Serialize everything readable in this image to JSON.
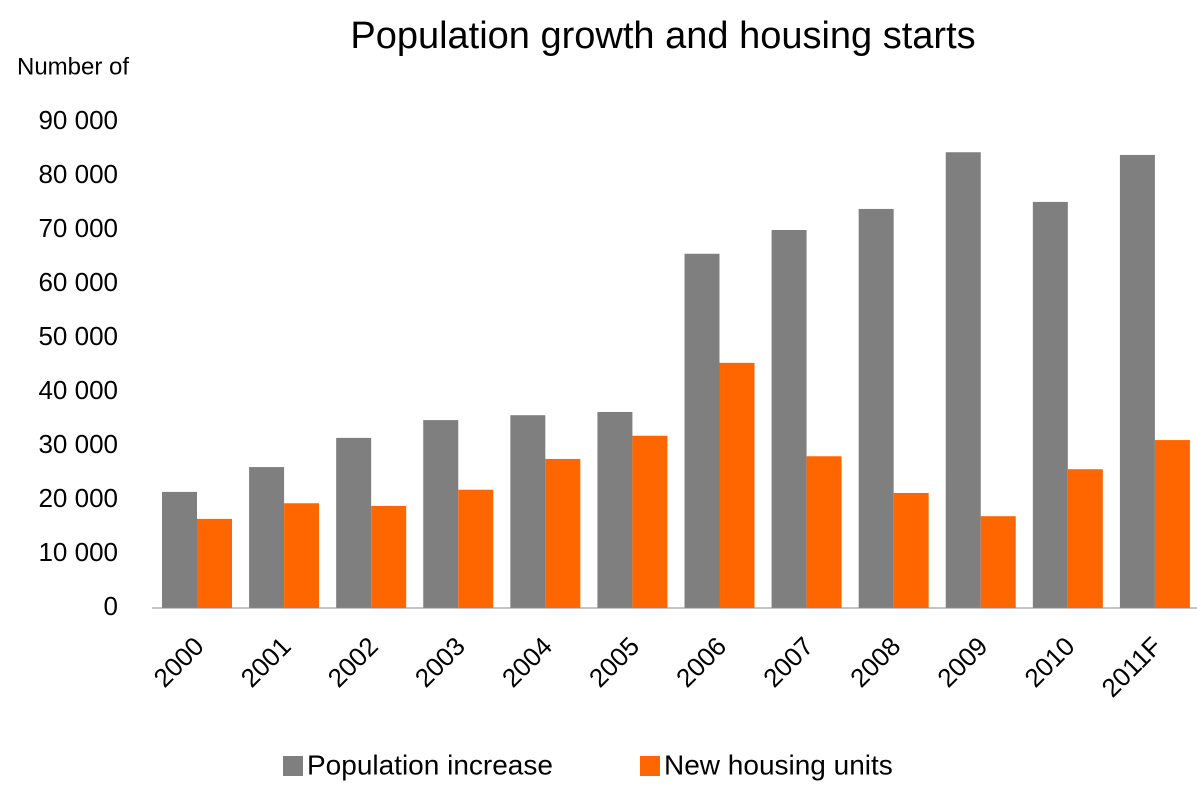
{
  "chart_data": {
    "type": "bar",
    "title": "Population growth and housing starts",
    "y_label": "Number of",
    "categories": [
      "2000",
      "2001",
      "2002",
      "2003",
      "2004",
      "2005",
      "2006",
      "2007",
      "2008",
      "2009",
      "2010",
      "2011F"
    ],
    "series": [
      {
        "name": "Population increase",
        "color": "#7f7f7f",
        "values": [
          21500,
          26100,
          31500,
          34800,
          35700,
          36300,
          65600,
          70000,
          73900,
          84400,
          75200,
          83900
        ]
      },
      {
        "name": "New housing units",
        "color": "#ff6600",
        "values": [
          16500,
          19400,
          18900,
          21900,
          27600,
          31900,
          45400,
          28100,
          21300,
          17000,
          25700,
          31100
        ]
      }
    ],
    "ylim": [
      0,
      90000
    ],
    "yticks": [
      0,
      {
        "value": 10000,
        "label": "10 000"
      },
      {
        "value": 20000,
        "label": "20 000"
      },
      {
        "value": 30000,
        "label": "30 000"
      },
      {
        "value": 40000,
        "label": "40 000"
      },
      {
        "value": 50000,
        "label": "50 000"
      },
      {
        "value": 60000,
        "label": "60 000"
      },
      {
        "value": 70000,
        "label": "70 000"
      },
      {
        "value": 80000,
        "label": "80 000"
      },
      {
        "value": 90000,
        "label": "90 000"
      }
    ],
    "grid": false,
    "legend": "bottom"
  }
}
